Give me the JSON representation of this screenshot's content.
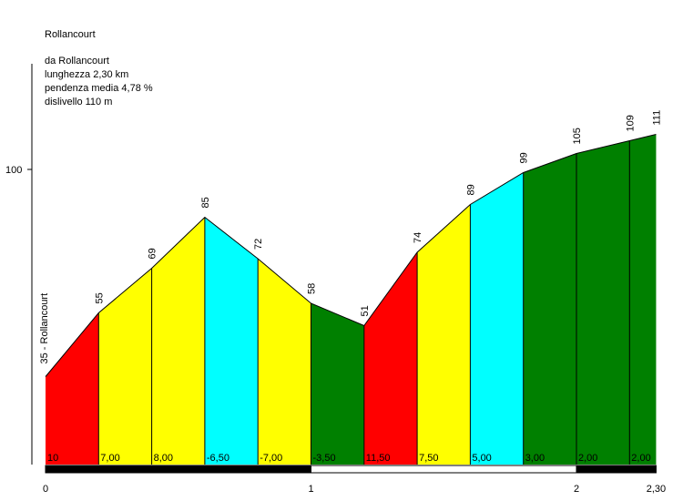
{
  "header": {
    "title": "Rollancourt",
    "from": "da Rollancourt",
    "length": "lunghezza 2,30 km",
    "avg_gradient": "pendenza media 4,78 %",
    "elevation_gain": "dislivello 110 m"
  },
  "chart_data": {
    "type": "area",
    "title": "Rollancourt",
    "start_label": "35 - Rollancourt",
    "y_tick_labels": [
      "100"
    ],
    "y_ticks": [
      100
    ],
    "x_tick_labels": [
      "0",
      "1",
      "2",
      "2,30"
    ],
    "x_ticks": [
      0,
      1,
      2,
      2.3
    ],
    "xlim": [
      0,
      2.3
    ],
    "ylim": [
      25,
      120
    ],
    "distance_km": [
      0,
      0.2,
      0.4,
      0.6,
      0.8,
      1.0,
      1.2,
      1.4,
      1.6,
      1.8,
      2.0,
      2.2,
      2.3
    ],
    "altitude_m": [
      35,
      55,
      69,
      85,
      72,
      58,
      51,
      74,
      89,
      99,
      105,
      109,
      111
    ],
    "altitude_labels": [
      "55",
      "69",
      "85",
      "72",
      "58",
      "51",
      "74",
      "89",
      "99",
      "105",
      "109",
      "111"
    ],
    "gradient_labels": [
      "10",
      "7,00",
      "8,00",
      "-6,50",
      "-7,00",
      "-3,50",
      "11,50",
      "7,50",
      "5,00",
      "3,00",
      "2,00",
      "2,00"
    ],
    "segment_colors": [
      "#ff0000",
      "#ffff00",
      "#ffff00",
      "#00ffff",
      "#ffff00",
      "#008000",
      "#ff0000",
      "#ffff00",
      "#00ffff",
      "#008000",
      "#008000",
      "#008000"
    ]
  }
}
